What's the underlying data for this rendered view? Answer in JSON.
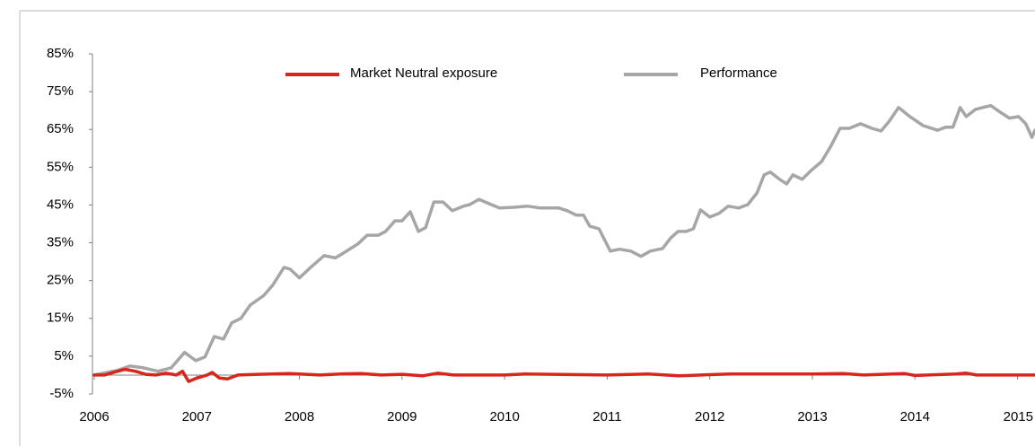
{
  "chart_data": {
    "type": "line",
    "legend": "top",
    "xlim": [
      2006,
      2015.17
    ],
    "xticks": [
      2006,
      2007,
      2008,
      2009,
      2010,
      2011,
      2012,
      2013,
      2014,
      2015
    ],
    "ylim": [
      -5,
      85
    ],
    "yticks": [
      {
        "value": -5,
        "label": "-5%"
      },
      {
        "value": 5,
        "label": "5%"
      },
      {
        "value": 15,
        "label": "15%"
      },
      {
        "value": 25,
        "label": "25%"
      },
      {
        "value": 35,
        "label": "35%"
      },
      {
        "value": 45,
        "label": "45%"
      },
      {
        "value": 55,
        "label": "55%"
      },
      {
        "value": 65,
        "label": "65%"
      },
      {
        "value": 75,
        "label": "75%"
      },
      {
        "value": 85,
        "label": "85%"
      }
    ],
    "series": [
      {
        "name": "Market Neutral exposure",
        "color": "#d9261c",
        "x": [
          2006.0,
          2006.1,
          2006.2,
          2006.3,
          2006.4,
          2006.5,
          2006.6,
          2006.7,
          2006.8,
          2006.86,
          2006.92,
          2007.0,
          2007.1,
          2007.15,
          2007.22,
          2007.3,
          2007.4,
          2007.6,
          2007.9,
          2008.2,
          2008.4,
          2008.6,
          2008.8,
          2009.0,
          2009.2,
          2009.35,
          2009.5,
          2010.0,
          2010.2,
          2011.0,
          2011.4,
          2011.7,
          2012.0,
          2012.2,
          2013.0,
          2013.3,
          2013.5,
          2013.9,
          2014.0,
          2014.4,
          2014.5,
          2014.6,
          2015.17
        ],
        "values": [
          0,
          0,
          0.8,
          1.5,
          1,
          0.2,
          0,
          0.5,
          0,
          1,
          -1.7,
          -0.8,
          0,
          0.7,
          -0.8,
          -1,
          0,
          0.2,
          0.4,
          0,
          0.3,
          0.4,
          0,
          0.2,
          -0.2,
          0.5,
          0,
          0,
          0.3,
          0,
          0.3,
          -0.2,
          0.1,
          0.3,
          0.3,
          0.4,
          0,
          0.4,
          -0.1,
          0.3,
          0.5,
          0,
          0
        ]
      },
      {
        "name": "Performance",
        "color": "#a6a6a6",
        "x": [
          2006.0,
          2006.22,
          2006.35,
          2006.48,
          2006.62,
          2006.75,
          2006.88,
          2006.99,
          2007.08,
          2007.17,
          2007.26,
          2007.34,
          2007.43,
          2007.52,
          2007.65,
          2007.74,
          2007.85,
          2007.91,
          2008.0,
          2008.11,
          2008.24,
          2008.35,
          2008.46,
          2008.57,
          2008.66,
          2008.77,
          2008.84,
          2008.93,
          2009.0,
          2009.08,
          2009.16,
          2009.23,
          2009.31,
          2009.4,
          2009.49,
          2009.6,
          2009.66,
          2009.75,
          2009.87,
          2009.95,
          2010.09,
          2010.22,
          2010.35,
          2010.53,
          2010.61,
          2010.7,
          2010.77,
          2010.83,
          2010.92,
          2011.03,
          2011.12,
          2011.23,
          2011.33,
          2011.42,
          2011.54,
          2011.62,
          2011.69,
          2011.77,
          2011.84,
          2011.91,
          2012.0,
          2012.09,
          2012.18,
          2012.28,
          2012.37,
          2012.46,
          2012.53,
          2012.59,
          2012.68,
          2012.75,
          2012.81,
          2012.9,
          2012.99,
          2013.09,
          2013.18,
          2013.27,
          2013.36,
          2013.47,
          2013.58,
          2013.67,
          2013.75,
          2013.84,
          2013.95,
          2014.08,
          2014.22,
          2014.3,
          2014.37,
          2014.44,
          2014.5,
          2014.59,
          2014.66,
          2014.74,
          2014.83,
          2014.92,
          2015.01,
          2015.08,
          2015.14,
          2015.17
        ],
        "values": [
          0,
          1.2,
          2.4,
          1.9,
          1,
          1.9,
          6,
          3.8,
          4.8,
          10.2,
          9.5,
          13.8,
          15,
          18.5,
          21,
          23.8,
          28.5,
          28,
          25.7,
          28.5,
          31.6,
          31,
          32.8,
          34.7,
          37,
          37,
          38,
          40.8,
          40.8,
          43.2,
          38,
          39,
          45.8,
          45.8,
          43.5,
          44.7,
          45.1,
          46.5,
          45.1,
          44.2,
          44.4,
          44.7,
          44.2,
          44.2,
          43.5,
          42.3,
          42.3,
          39.4,
          38.7,
          32.8,
          33.3,
          32.8,
          31.4,
          32.8,
          33.5,
          36.3,
          38,
          38,
          38.7,
          43.7,
          41.8,
          42.8,
          44.7,
          44.2,
          45.1,
          48.2,
          53,
          53.7,
          51.8,
          50.6,
          53,
          51.8,
          54.2,
          56.5,
          60.6,
          65.3,
          65.3,
          66.5,
          65.3,
          64.6,
          67.2,
          70.8,
          68.4,
          66,
          64.8,
          65.6,
          65.6,
          70.8,
          68.4,
          70.3,
          70.8,
          71.3,
          69.6,
          68,
          68.4,
          66.5,
          62.9,
          64.8
        ]
      }
    ]
  }
}
